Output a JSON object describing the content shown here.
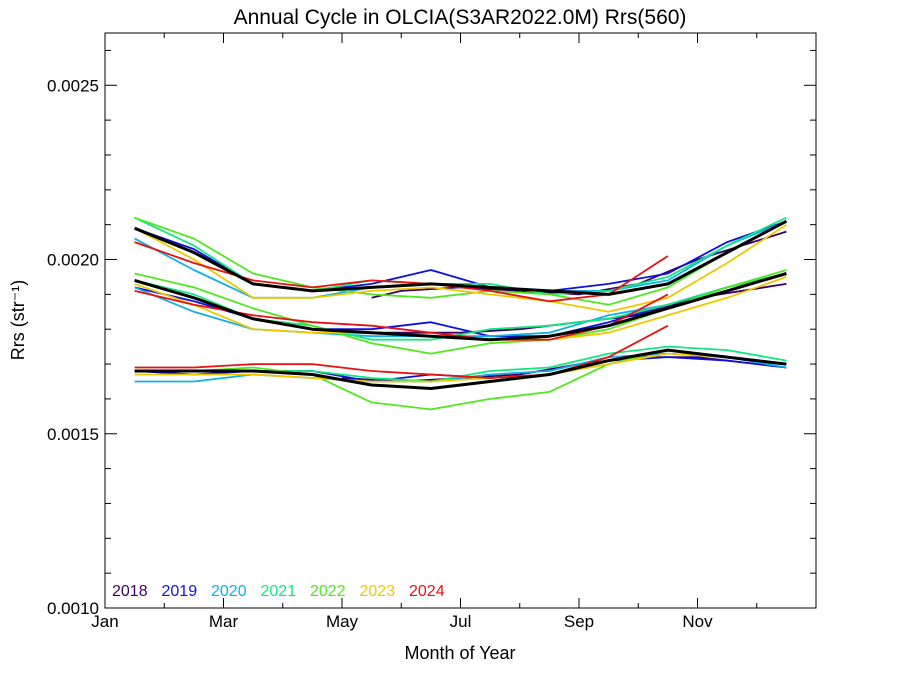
{
  "chart_data": {
    "type": "line",
    "title": "Annual Cycle in OLCIA(S3AR2022.0M) Rrs(560)",
    "xlabel": "Month of Year",
    "ylabel": "Rrs (str⁻¹)",
    "xlim": [
      1,
      13
    ],
    "ylim": [
      0.001,
      0.00265
    ],
    "xticks": [
      {
        "v": 1,
        "label": "Jan"
      },
      {
        "v": 3,
        "label": "Mar"
      },
      {
        "v": 5,
        "label": "May"
      },
      {
        "v": 7,
        "label": "Jul"
      },
      {
        "v": 9,
        "label": "Sep"
      },
      {
        "v": 11,
        "label": "Nov"
      }
    ],
    "yticks": [
      {
        "v": 0.001,
        "label": "0.0010"
      },
      {
        "v": 0.0015,
        "label": "0.0015"
      },
      {
        "v": 0.002,
        "label": "0.0020"
      },
      {
        "v": 0.0025,
        "label": "0.0025"
      }
    ],
    "grid": false,
    "legend_position": "bottom-left",
    "series": [
      {
        "name": "2018",
        "color": "#3a0066",
        "groups": [
          {
            "x": [
              5.5,
              6,
              7,
              8,
              9,
              10,
              11,
              12.5
            ],
            "y": [
              0.00189,
              0.00191,
              0.00192,
              0.00191,
              0.0019,
              0.00193,
              0.002,
              0.00208
            ]
          },
          {
            "x": [
              5,
              6,
              7,
              8,
              9,
              10,
              11,
              12.5
            ],
            "y": [
              0.00179,
              0.00179,
              0.00179,
              0.0018,
              0.00182,
              0.00184,
              0.00189,
              0.00193
            ]
          },
          {
            "x": [
              5,
              6,
              7,
              8,
              9,
              10,
              11,
              12.5
            ],
            "y": [
              0.00166,
              0.00165,
              0.00166,
              0.00167,
              0.0017,
              0.00172,
              0.00172,
              0.00169
            ]
          }
        ]
      },
      {
        "name": "2019",
        "color": "#1010e0",
        "groups": [
          {
            "x": [
              1.5,
              2.5,
              3.5,
              4.5,
              5.5,
              6.5,
              7.5,
              8.5,
              9.5,
              10.5,
              11.5,
              12.5
            ],
            "y": [
              0.00209,
              0.00203,
              0.00193,
              0.00191,
              0.00193,
              0.00197,
              0.00192,
              0.00191,
              0.00193,
              0.00196,
              0.00205,
              0.00211
            ]
          },
          {
            "x": [
              1.5,
              2.5,
              3.5,
              4.5,
              5.5,
              6.5,
              7.5,
              8.5,
              9.5,
              10.5,
              11.5,
              12.5
            ],
            "y": [
              0.00192,
              0.00188,
              0.00183,
              0.0018,
              0.0018,
              0.00182,
              0.00178,
              0.00178,
              0.00182,
              0.00187,
              0.00192,
              0.00196
            ]
          },
          {
            "x": [
              1.5,
              2.5,
              3.5,
              4.5,
              5.5,
              6.5,
              7.5,
              8.5,
              9.5,
              10.5,
              11.5,
              12.5
            ],
            "y": [
              0.00168,
              0.00167,
              0.00168,
              0.00168,
              0.00165,
              0.00167,
              0.00166,
              0.00167,
              0.00171,
              0.00172,
              0.00171,
              0.00169
            ]
          }
        ]
      },
      {
        "name": "2020",
        "color": "#10b0e8",
        "groups": [
          {
            "x": [
              1.5,
              2.5,
              3.5,
              4.5,
              5.5,
              6.5,
              7.5,
              8.5,
              9.5,
              10.5,
              11.5,
              12.5
            ],
            "y": [
              0.00206,
              0.00197,
              0.00189,
              0.00189,
              0.00192,
              0.00193,
              0.00192,
              0.00191,
              0.00191,
              0.00194,
              0.00204,
              0.00211
            ]
          },
          {
            "x": [
              1.5,
              2.5,
              3.5,
              4.5,
              5.5,
              6.5,
              7.5,
              8.5,
              9.5,
              10.5,
              11.5,
              12.5
            ],
            "y": [
              0.00192,
              0.00185,
              0.0018,
              0.00179,
              0.00178,
              0.00178,
              0.00178,
              0.00179,
              0.00184,
              0.00187,
              0.00192,
              0.00196
            ]
          },
          {
            "x": [
              1.5,
              2.5,
              3.5,
              4.5,
              5.5,
              6.5,
              7.5,
              8.5,
              9.5,
              10.5,
              11.5,
              12.5
            ],
            "y": [
              0.00165,
              0.00165,
              0.00167,
              0.00166,
              0.00165,
              0.00165,
              0.00167,
              0.00168,
              0.00172,
              0.00173,
              0.00172,
              0.00169
            ]
          }
        ]
      },
      {
        "name": "2021",
        "color": "#10e880",
        "groups": [
          {
            "x": [
              1.5,
              2.5,
              3.5,
              4.5,
              5.5,
              6.5,
              7.5,
              8.5,
              9.5,
              10.5,
              11.5,
              12.5
            ],
            "y": [
              0.00212,
              0.00204,
              0.00193,
              0.00191,
              0.00194,
              0.00193,
              0.00193,
              0.0019,
              0.00191,
              0.00195,
              0.00204,
              0.00212
            ]
          },
          {
            "x": [
              1.5,
              2.5,
              3.5,
              4.5,
              5.5,
              6.5,
              7.5,
              8.5,
              9.5,
              10.5,
              11.5,
              12.5
            ],
            "y": [
              0.00194,
              0.0019,
              0.00183,
              0.00181,
              0.00177,
              0.00177,
              0.0018,
              0.00181,
              0.00183,
              0.00187,
              0.00192,
              0.00196
            ]
          },
          {
            "x": [
              1.5,
              2.5,
              3.5,
              4.5,
              5.5,
              6.5,
              7.5,
              8.5,
              9.5,
              10.5,
              11.5,
              12.5
            ],
            "y": [
              0.00168,
              0.00168,
              0.00168,
              0.00168,
              0.00166,
              0.00165,
              0.00168,
              0.00169,
              0.00173,
              0.00175,
              0.00174,
              0.00171
            ]
          }
        ]
      },
      {
        "name": "2022",
        "color": "#50e820",
        "groups": [
          {
            "x": [
              1.5,
              2.5,
              3.5,
              4.5,
              5.5,
              6.5,
              7.5,
              8.5,
              9.5,
              10.5,
              11.5,
              12.5
            ],
            "y": [
              0.00212,
              0.00206,
              0.00196,
              0.00192,
              0.0019,
              0.00189,
              0.00191,
              0.0019,
              0.00187,
              0.00192,
              0.00202,
              0.00211
            ]
          },
          {
            "x": [
              1.5,
              2.5,
              3.5,
              4.5,
              5.5,
              6.5,
              7.5,
              8.5,
              9.5,
              10.5,
              11.5,
              12.5
            ],
            "y": [
              0.00196,
              0.00192,
              0.00186,
              0.00181,
              0.00176,
              0.00173,
              0.00176,
              0.00177,
              0.0018,
              0.00186,
              0.00192,
              0.00197
            ]
          },
          {
            "x": [
              1.5,
              2.5,
              3.5,
              4.5,
              5.5,
              6.5,
              7.5,
              8.5,
              9.5,
              10.5,
              11.5,
              12.5
            ],
            "y": [
              0.00168,
              0.00168,
              0.00169,
              0.00167,
              0.00159,
              0.00157,
              0.0016,
              0.00162,
              0.0017,
              0.00174,
              0.00172,
              0.0017
            ]
          }
        ]
      },
      {
        "name": "2023",
        "color": "#f0c800",
        "groups": [
          {
            "x": [
              1.5,
              2.5,
              3.5,
              4.5,
              5.5,
              6.5,
              7.5,
              8.5,
              9.5,
              10.5,
              11.5,
              12.5
            ],
            "y": [
              0.00209,
              0.002,
              0.00189,
              0.00189,
              0.00191,
              0.00192,
              0.0019,
              0.00188,
              0.00185,
              0.00189,
              0.00199,
              0.0021
            ]
          },
          {
            "x": [
              1.5,
              2.5,
              3.5,
              4.5,
              5.5,
              6.5,
              7.5,
              8.5,
              9.5,
              10.5,
              11.5,
              12.5
            ],
            "y": [
              0.00193,
              0.00187,
              0.0018,
              0.00179,
              0.00179,
              0.00178,
              0.00177,
              0.00177,
              0.00179,
              0.00184,
              0.00189,
              0.00195
            ]
          },
          {
            "x": [
              1.5,
              2.5,
              3.5,
              4.5,
              5.5,
              6.5,
              7.5,
              8.5,
              9.5,
              10.5,
              11.5,
              12.5
            ],
            "y": [
              0.00167,
              0.00167,
              0.00167,
              0.00166,
              0.00165,
              0.00165,
              0.00166,
              0.00167,
              0.0017,
              0.00173,
              0.00172,
              0.0017
            ]
          }
        ]
      },
      {
        "name": "2024",
        "color": "#e81010",
        "groups": [
          {
            "x": [
              1.5,
              2.5,
              3.5,
              4.5,
              5.5,
              6.5,
              7.5,
              8.5,
              9.5,
              10.5
            ],
            "y": [
              0.00205,
              0.00199,
              0.00194,
              0.00192,
              0.00194,
              0.00193,
              0.00191,
              0.00188,
              0.0019,
              0.00201
            ]
          },
          {
            "x": [
              1.5,
              2.5,
              3.5,
              4.5,
              5.5,
              6.5,
              7.5,
              8.5,
              9.5,
              10.5
            ],
            "y": [
              0.00191,
              0.00187,
              0.00184,
              0.00182,
              0.00181,
              0.00179,
              0.00177,
              0.00177,
              0.00181,
              0.0019
            ]
          },
          {
            "x": [
              1.5,
              2.5,
              3.5,
              4.5,
              5.5,
              6.5,
              7.5,
              8.5,
              9.5,
              10.5
            ],
            "y": [
              0.00169,
              0.00169,
              0.0017,
              0.0017,
              0.00168,
              0.00167,
              0.00166,
              0.00167,
              0.00172,
              0.00181
            ]
          }
        ]
      }
    ],
    "climatology": {
      "color": "#000000",
      "groups": [
        {
          "x": [
            1.5,
            2.5,
            3.5,
            4.5,
            5.5,
            6.5,
            7.5,
            8.5,
            9.5,
            10.5,
            11.5,
            12.5
          ],
          "y": [
            0.00209,
            0.00202,
            0.00193,
            0.00191,
            0.00192,
            0.00193,
            0.00192,
            0.00191,
            0.0019,
            0.00193,
            0.00202,
            0.00211
          ]
        },
        {
          "x": [
            1.5,
            2.5,
            3.5,
            4.5,
            5.5,
            6.5,
            7.5,
            8.5,
            9.5,
            10.5,
            11.5,
            12.5
          ],
          "y": [
            0.00194,
            0.00189,
            0.00183,
            0.0018,
            0.00179,
            0.00178,
            0.00177,
            0.00178,
            0.00181,
            0.00186,
            0.00191,
            0.00196
          ]
        },
        {
          "x": [
            1.5,
            2.5,
            3.5,
            4.5,
            5.5,
            6.5,
            7.5,
            8.5,
            9.5,
            10.5,
            11.5,
            12.5
          ],
          "y": [
            0.00168,
            0.00168,
            0.00168,
            0.00167,
            0.00164,
            0.00163,
            0.00165,
            0.00167,
            0.00171,
            0.00174,
            0.00172,
            0.0017
          ]
        }
      ]
    }
  }
}
